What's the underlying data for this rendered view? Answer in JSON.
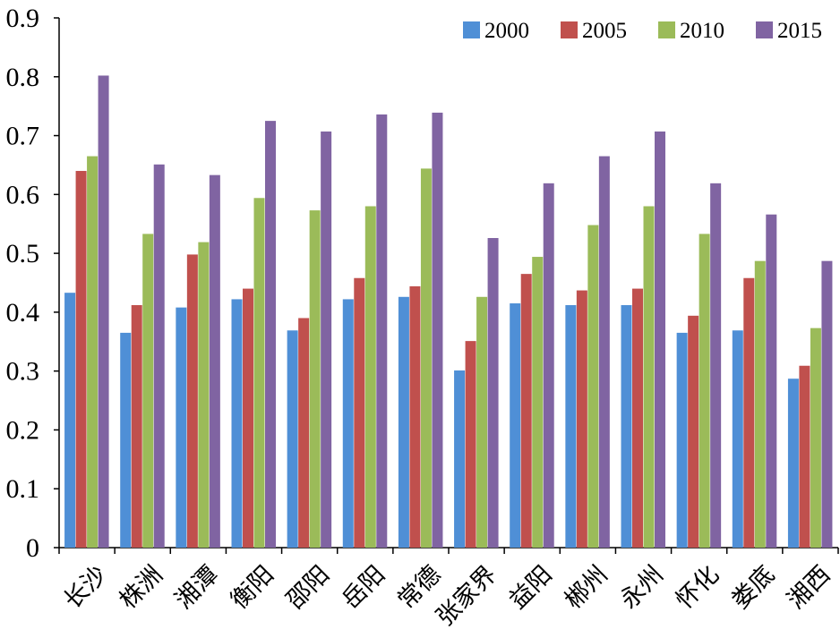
{
  "chart_data": {
    "type": "bar",
    "title": "",
    "xlabel": "",
    "ylabel": "",
    "ylim": [
      0,
      0.9
    ],
    "y_ticks": [
      "0",
      "0.1",
      "0.2",
      "0.3",
      "0.4",
      "0.5",
      "0.6",
      "0.7",
      "0.8",
      "0.9"
    ],
    "grid": false,
    "legend_position": "top-right",
    "categories": [
      "长沙",
      "株洲",
      "湘潭",
      "衡阳",
      "邵阳",
      "岳阳",
      "常德",
      "张家界",
      "益阳",
      "郴州",
      "永州",
      "怀化",
      "娄底",
      "湘西"
    ],
    "series": [
      {
        "name": "2000",
        "color": "#4f8fd6",
        "values": [
          0.433,
          0.365,
          0.408,
          0.422,
          0.369,
          0.422,
          0.426,
          0.301,
          0.415,
          0.412,
          0.412,
          0.365,
          0.369,
          0.287
        ]
      },
      {
        "name": "2005",
        "color": "#c0504d",
        "values": [
          0.64,
          0.412,
          0.498,
          0.44,
          0.39,
          0.458,
          0.444,
          0.351,
          0.465,
          0.437,
          0.44,
          0.394,
          0.458,
          0.309
        ]
      },
      {
        "name": "2010",
        "color": "#9bbb59",
        "values": [
          0.665,
          0.533,
          0.519,
          0.594,
          0.573,
          0.58,
          0.644,
          0.426,
          0.494,
          0.548,
          0.58,
          0.533,
          0.487,
          0.373
        ]
      },
      {
        "name": "2015",
        "color": "#8064a2",
        "values": [
          0.802,
          0.651,
          0.633,
          0.725,
          0.707,
          0.736,
          0.739,
          0.526,
          0.619,
          0.665,
          0.707,
          0.619,
          0.566,
          0.487
        ]
      }
    ]
  }
}
